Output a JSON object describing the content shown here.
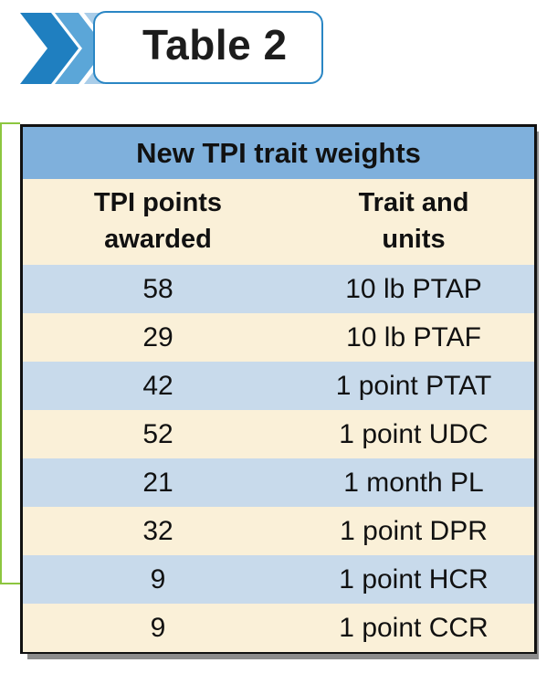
{
  "header": {
    "title": "Table 2",
    "colors": {
      "border": "#2a86c4",
      "chevron_dark": "#1f7fc0",
      "chevron_mid": "#5ba6d8",
      "chevron_light": "#a9cde9"
    }
  },
  "table": {
    "title": "New TPI trait weights",
    "columns": [
      {
        "line1": "TPI points",
        "line2": "awarded"
      },
      {
        "line1": "Trait and",
        "line2": "units"
      }
    ],
    "rows": [
      {
        "points": "58",
        "trait": "10 lb PTAP"
      },
      {
        "points": "29",
        "trait": "10 lb PTAF"
      },
      {
        "points": "42",
        "trait": "1 point PTAT"
      },
      {
        "points": "52",
        "trait": "1 point UDC"
      },
      {
        "points": "21",
        "trait": "1 month PL"
      },
      {
        "points": "32",
        "trait": "1 point DPR"
      },
      {
        "points": "9",
        "trait": "1 point HCR"
      },
      {
        "points": "9",
        "trait": "1 point CCR"
      }
    ],
    "colors": {
      "title_bg": "#7fb0dc",
      "row_blue": "#c8daeb",
      "row_cream": "#faf0d8"
    }
  }
}
